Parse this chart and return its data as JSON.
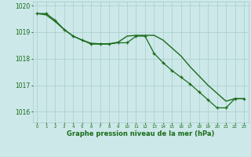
{
  "line_markers": [
    1019.7,
    1019.7,
    1019.45,
    1019.1,
    1018.85,
    1018.7,
    1018.55,
    1018.55,
    1018.55,
    1018.6,
    1018.6,
    1018.85,
    1018.85,
    1018.2,
    1017.85,
    1017.55,
    1017.3,
    1017.05,
    1016.75,
    1016.45,
    1016.15,
    1016.15,
    1016.5,
    1016.5
  ],
  "line_smooth": [
    1019.7,
    1019.65,
    1019.4,
    1019.1,
    1018.85,
    1018.7,
    1018.58,
    1018.56,
    1018.56,
    1018.62,
    1018.85,
    1018.88,
    1018.88,
    1018.88,
    1018.7,
    1018.4,
    1018.1,
    1017.7,
    1017.35,
    1017.0,
    1016.7,
    1016.4,
    1016.5,
    1016.5
  ],
  "x": [
    0,
    1,
    2,
    3,
    4,
    5,
    6,
    7,
    8,
    9,
    10,
    11,
    12,
    13,
    14,
    15,
    16,
    17,
    18,
    19,
    20,
    21,
    22,
    23
  ],
  "ylim": [
    1015.6,
    1020.15
  ],
  "yticks": [
    1016,
    1017,
    1018,
    1019,
    1020
  ],
  "xlabel": "Graphe pression niveau de la mer (hPa)",
  "bg_color": "#cce8e8",
  "line_color": "#1a6b1a",
  "grid_color": "#aacccc",
  "xlabel_color": "#1a6b1a",
  "tick_color": "#1a6b1a",
  "fig_w": 3.2,
  "fig_h": 2.0,
  "dpi": 100
}
